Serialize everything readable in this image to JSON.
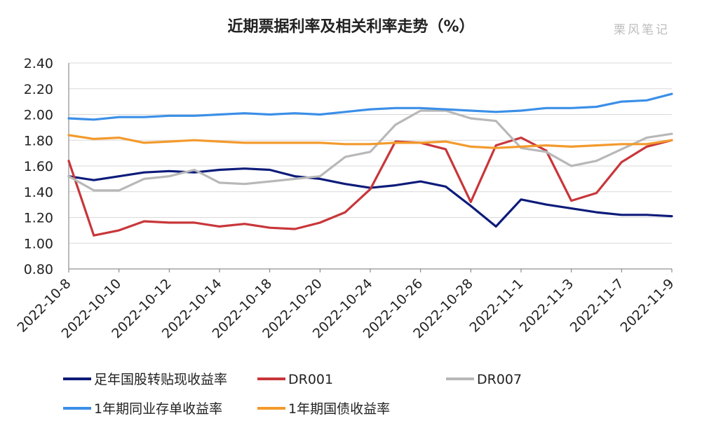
{
  "title": "近期票据利率及相关利率走势（%）",
  "watermark": "栗风笔记",
  "chart_data": {
    "type": "line",
    "title": "近期票据利率及相关利率走势（%）",
    "ylim": [
      0.8,
      2.4
    ],
    "yticks": [
      "0.80",
      "1.00",
      "1.20",
      "1.40",
      "1.60",
      "1.80",
      "2.00",
      "2.20",
      "2.40"
    ],
    "x": [
      "2022-10-8",
      "2022-10-9",
      "2022-10-10",
      "2022-10-11",
      "2022-10-12",
      "2022-10-13",
      "2022-10-14",
      "2022-10-17",
      "2022-10-18",
      "2022-10-19",
      "2022-10-20",
      "2022-10-21",
      "2022-10-24",
      "2022-10-25",
      "2022-10-26",
      "2022-10-27",
      "2022-10-28",
      "2022-10-31",
      "2022-11-1",
      "2022-11-2",
      "2022-11-3",
      "2022-11-4",
      "2022-11-7",
      "2022-11-8",
      "2022-11-9"
    ],
    "tick_labels": [
      "2022-10-8",
      "2022-10-10",
      "2022-10-12",
      "2022-10-14",
      "2022-10-18",
      "2022-10-20",
      "2022-10-24",
      "2022-10-26",
      "2022-10-28",
      "2022-11-1",
      "2022-11-3",
      "2022-11-7",
      "2022-11-9"
    ],
    "grid": "horizontal",
    "legend_position": "bottom",
    "series": [
      {
        "name": "足年国股转贴现收益率",
        "color": "#0d1b7a",
        "values": [
          1.52,
          1.49,
          1.52,
          1.55,
          1.56,
          1.55,
          1.57,
          1.58,
          1.57,
          1.52,
          1.5,
          1.46,
          1.43,
          1.45,
          1.48,
          1.44,
          1.29,
          1.13,
          1.34,
          1.3,
          1.27,
          1.24,
          1.22,
          1.22,
          1.21
        ]
      },
      {
        "name": "DR001",
        "color": "#c8363a",
        "values": [
          1.64,
          1.06,
          1.1,
          1.17,
          1.16,
          1.16,
          1.13,
          1.15,
          1.12,
          1.11,
          1.16,
          1.24,
          1.42,
          1.79,
          1.78,
          1.73,
          1.32,
          1.76,
          1.82,
          1.72,
          1.33,
          1.39,
          1.63,
          1.75,
          1.8
        ]
      },
      {
        "name": "DR007",
        "color": "#b8b8b8",
        "values": [
          1.52,
          1.41,
          1.41,
          1.5,
          1.52,
          1.57,
          1.47,
          1.46,
          1.48,
          1.5,
          1.52,
          1.67,
          1.71,
          1.92,
          2.03,
          2.03,
          1.97,
          1.95,
          1.74,
          1.71,
          1.6,
          1.64,
          1.73,
          1.82,
          1.85
        ]
      },
      {
        "name": "1年期同业存单收益率",
        "color": "#3b8fe8",
        "values": [
          1.97,
          1.96,
          1.98,
          1.98,
          1.99,
          1.99,
          2.0,
          2.01,
          2.0,
          2.01,
          2.0,
          2.02,
          2.04,
          2.05,
          2.05,
          2.04,
          2.03,
          2.02,
          2.03,
          2.05,
          2.05,
          2.06,
          2.1,
          2.11,
          2.16
        ]
      },
      {
        "name": "1年期国债收益率",
        "color": "#f39a2c",
        "values": [
          1.84,
          1.81,
          1.82,
          1.78,
          1.79,
          1.8,
          1.79,
          1.78,
          1.78,
          1.78,
          1.78,
          1.77,
          1.77,
          1.78,
          1.78,
          1.79,
          1.75,
          1.74,
          1.75,
          1.76,
          1.75,
          1.76,
          1.77,
          1.77,
          1.8
        ]
      }
    ]
  }
}
